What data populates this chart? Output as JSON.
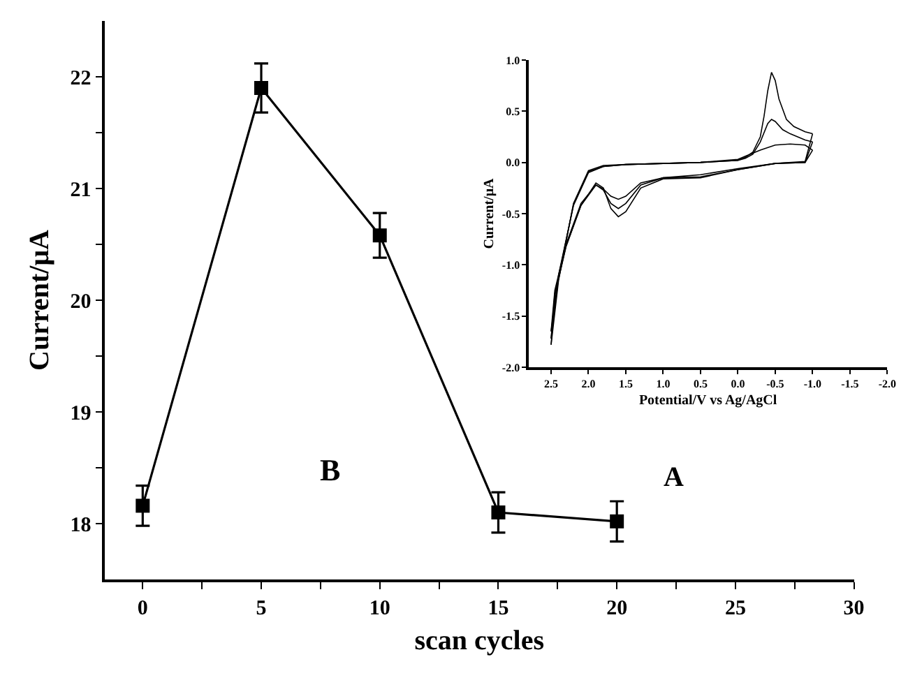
{
  "chart_data": [
    {
      "type": "line",
      "xlabel": "scan cycles",
      "ylabel": "Current/μA",
      "annotations": [
        "B"
      ],
      "x": [
        0,
        5,
        10,
        15,
        20
      ],
      "series": [
        {
          "color": "#000000",
          "values": [
            18.16,
            21.9,
            20.58,
            18.1,
            18.02
          ],
          "errors": [
            0.18,
            0.22,
            0.2,
            0.18,
            0.18
          ]
        }
      ],
      "xlim": [
        -1.6,
        30
      ],
      "xticks": [
        0,
        {
          "value": 2.5,
          "label": null
        },
        5,
        {
          "value": 7.5,
          "label": null
        },
        10,
        {
          "value": 12.5,
          "label": null
        },
        15,
        {
          "value": 17.5,
          "label": null
        },
        20,
        {
          "value": 22.5,
          "label": null
        },
        25,
        {
          "value": 27.5,
          "label": null
        },
        30
      ],
      "ylim": [
        17.5,
        22.5
      ],
      "yticks": [
        18,
        {
          "value": 18.5,
          "label": null
        },
        19,
        {
          "value": 19.5,
          "label": null
        },
        20,
        {
          "value": 20.5,
          "label": null
        },
        21,
        {
          "value": 21.5,
          "label": null
        },
        22
      ],
      "marker": "square",
      "line_style": "solid"
    },
    {
      "type": "line",
      "xlabel": "Potential/V vs Ag/AgCl",
      "ylabel": "Current/μA",
      "annotations": [
        "A"
      ],
      "series": [
        {
          "color": "#000000",
          "x": [
            -1.0,
            -0.9,
            -0.7,
            -0.5,
            -0.3,
            -0.1,
            0.0,
            0.5,
            1.0,
            1.5,
            1.8,
            2.0,
            2.2,
            2.4,
            2.5
          ],
          "values": [
            0.12,
            0.17,
            0.18,
            0.17,
            0.12,
            0.06,
            0.03,
            0.0,
            -0.01,
            -0.02,
            -0.04,
            -0.1,
            -0.42,
            -1.1,
            -1.65
          ]
        },
        {
          "color": "#000000",
          "x": [
            2.5,
            2.45,
            2.3,
            2.1,
            1.9,
            1.8,
            1.7,
            1.6,
            1.5,
            1.3,
            1.0,
            0.5,
            0.0,
            -0.5,
            -0.9,
            -1.0
          ],
          "values": [
            -1.65,
            -1.25,
            -0.8,
            -0.4,
            -0.22,
            -0.26,
            -0.33,
            -0.36,
            -0.33,
            -0.2,
            -0.15,
            -0.12,
            -0.06,
            -0.01,
            0.0,
            0.12
          ]
        },
        {
          "color": "#000000",
          "x": [
            -1.0,
            -0.9,
            -0.7,
            -0.6,
            -0.5,
            -0.45,
            -0.4,
            -0.3,
            -0.2,
            -0.1,
            0.0,
            0.5,
            1.0,
            1.5,
            1.8,
            2.0,
            2.2,
            2.4,
            2.5
          ],
          "values": [
            0.2,
            0.22,
            0.28,
            0.32,
            0.4,
            0.42,
            0.38,
            0.2,
            0.08,
            0.04,
            0.02,
            0.0,
            -0.01,
            -0.02,
            -0.04,
            -0.09,
            -0.41,
            -1.12,
            -1.72
          ]
        },
        {
          "color": "#000000",
          "x": [
            2.5,
            2.45,
            2.3,
            2.1,
            1.9,
            1.8,
            1.7,
            1.6,
            1.5,
            1.3,
            1.0,
            0.5,
            0.0,
            -0.5,
            -0.9,
            -1.0
          ],
          "values": [
            -1.72,
            -1.28,
            -0.82,
            -0.42,
            -0.22,
            -0.27,
            -0.4,
            -0.45,
            -0.4,
            -0.22,
            -0.15,
            -0.14,
            -0.07,
            -0.01,
            0.0,
            0.2
          ]
        },
        {
          "color": "#000000",
          "x": [
            -1.0,
            -0.9,
            -0.75,
            -0.65,
            -0.55,
            -0.5,
            -0.45,
            -0.4,
            -0.35,
            -0.3,
            -0.2,
            -0.1,
            0.0,
            0.5,
            1.0,
            1.5,
            1.8,
            2.0,
            2.2,
            2.4,
            2.5
          ],
          "values": [
            0.28,
            0.3,
            0.35,
            0.42,
            0.62,
            0.8,
            0.88,
            0.7,
            0.45,
            0.25,
            0.1,
            0.05,
            0.02,
            0.0,
            -0.01,
            -0.02,
            -0.03,
            -0.08,
            -0.4,
            -1.15,
            -1.78
          ]
        },
        {
          "color": "#000000",
          "x": [
            2.5,
            2.45,
            2.3,
            2.1,
            1.9,
            1.8,
            1.7,
            1.6,
            1.5,
            1.3,
            1.0,
            0.5,
            0.0,
            -0.5,
            -0.9,
            -1.0
          ],
          "values": [
            -1.78,
            -1.3,
            -0.82,
            -0.42,
            -0.2,
            -0.25,
            -0.45,
            -0.53,
            -0.48,
            -0.25,
            -0.16,
            -0.15,
            -0.07,
            -0.01,
            0.01,
            0.28
          ]
        }
      ],
      "xlim": [
        2.8,
        -2.0
      ],
      "xticks": [
        {
          "value": 2.5,
          "label": "2.5"
        },
        {
          "value": 2,
          "label": "2.0"
        },
        {
          "value": 1.5,
          "label": "1.5"
        },
        {
          "value": 1,
          "label": "1.0"
        },
        {
          "value": 0.5,
          "label": "0.5"
        },
        {
          "value": 0,
          "label": "0.0"
        },
        {
          "value": -0.5,
          "label": "-0.5"
        },
        {
          "value": -1,
          "label": "-1.0"
        },
        {
          "value": -1.5,
          "label": "-1.5"
        },
        {
          "value": -2,
          "label": "-2.0"
        }
      ],
      "ylim": [
        -2.0,
        1.0
      ],
      "yticks": [
        {
          "value": 1,
          "label": "1.0"
        },
        {
          "value": 0.5,
          "label": "0.5"
        },
        {
          "value": 0,
          "label": "0.0"
        },
        {
          "value": -0.5,
          "label": "-0.5"
        },
        {
          "value": -1,
          "label": "-1.0"
        },
        {
          "value": -1.5,
          "label": "-1.5"
        },
        {
          "value": -2,
          "label": "-2.0"
        }
      ],
      "marker": "none",
      "line_style": "solid"
    }
  ]
}
